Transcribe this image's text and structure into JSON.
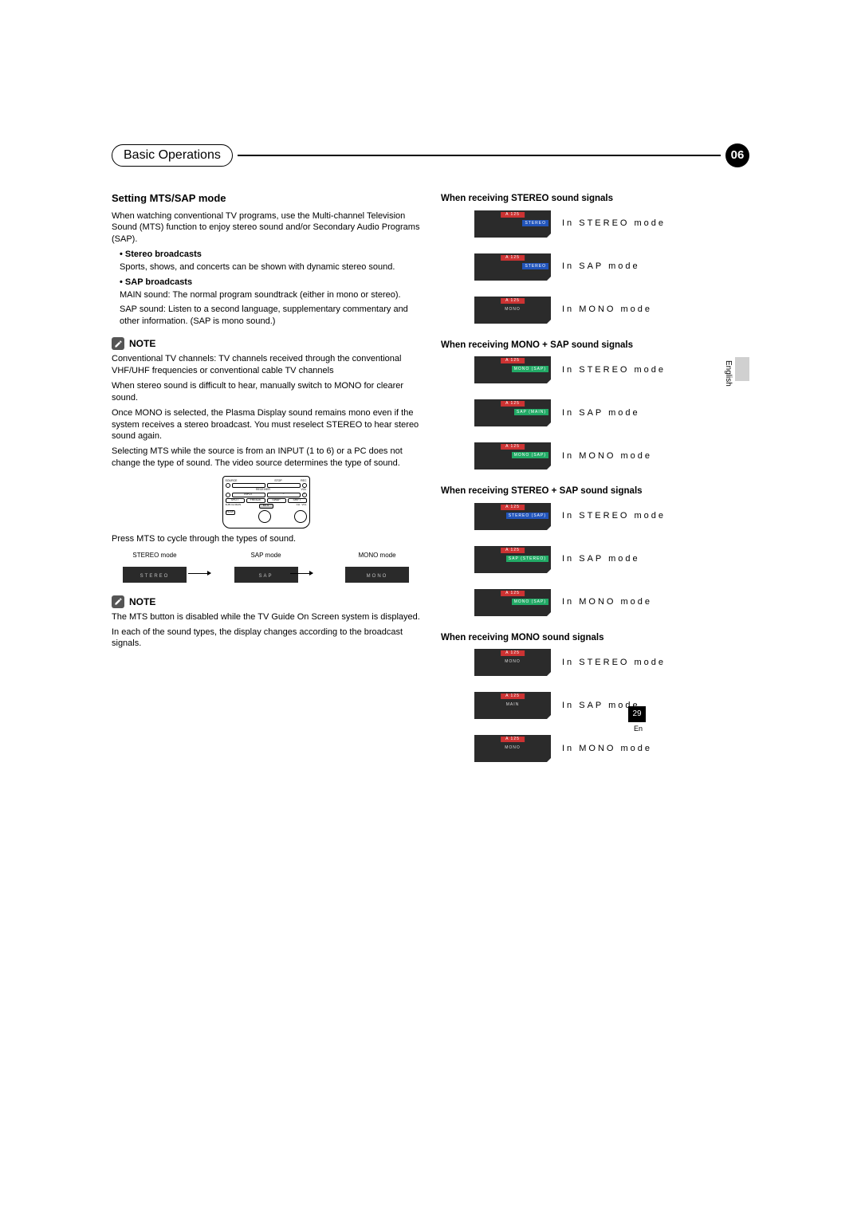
{
  "chapter": {
    "title": "Basic Operations",
    "number": "06"
  },
  "side": {
    "lang": "English",
    "pageNum": "29",
    "pageLang": "En"
  },
  "left": {
    "h1": "Setting MTS/SAP mode",
    "intro": "When watching conventional TV programs, use the Multi-channel Television Sound (MTS) function to enjoy stereo sound and/or Secondary Audio Programs (SAP).",
    "bullet1h": "Stereo broadcasts",
    "bullet1p": "Sports, shows, and concerts can be shown with dynamic stereo sound.",
    "bullet2h": "SAP broadcasts",
    "bullet2p1": "MAIN sound: The normal program soundtrack (either in mono or stereo).",
    "bullet2p2": "SAP sound: Listen to a second language, supplementary commentary and other information. (SAP is mono sound.)",
    "note1h": "NOTE",
    "note1p1": "Conventional TV channels: TV channels received through the conventional VHF/UHF frequencies or conventional cable TV channels",
    "note1p2": "When stereo sound is difficult to hear, manually switch to MONO for clearer sound.",
    "note1p3": "Once MONO is selected, the Plasma Display sound remains mono even if the system receives a stereo broadcast. You must reselect STEREO to hear stereo sound again.",
    "note1p4": "Selecting MTS while the source is from an INPUT (1 to 6) or a PC does not change the type of sound. The video source determines the type of sound.",
    "pressLine": "Press MTS to cycle through the types of sound.",
    "modes": {
      "l1": "STEREO mode",
      "l2": "SAP mode",
      "l3": "MONO mode",
      "b1": "STEREO",
      "b2": "SAP",
      "b3": "MONO"
    },
    "note2h": "NOTE",
    "note2p1": "The MTS button is disabled while the TV Guide On Screen system is displayed.",
    "note2p2": "In each of the sound types, the display changes according to the broadcast signals."
  },
  "remote": {
    "row1": [
      "SOURCE",
      "",
      "STOP",
      "REC"
    ],
    "row2": [
      "",
      "INPUT",
      "RECEIVER",
      "VOL"
    ],
    "row3": [
      "SPLIT",
      "FREEZE",
      "SWAP",
      "SHIFT"
    ],
    "row4": [
      "SUB CH",
      "MAIN",
      "MTS",
      "CH",
      "",
      "VOL"
    ],
    "bottom": "HDMI"
  },
  "right": {
    "sections": [
      {
        "h": "When receiving STEREO sound signals",
        "rows": [
          {
            "badge": "STEREO",
            "badgeColor": "blue",
            "label": "In STEREO mode"
          },
          {
            "badge": "STEREO",
            "badgeColor": "blue",
            "label": "In SAP mode"
          },
          {
            "badge": "MONO",
            "badgeColor": "none",
            "label": "In MONO mode"
          }
        ]
      },
      {
        "h": "When receiving MONO + SAP sound signals",
        "rows": [
          {
            "badge": "MONO (SAP)",
            "badgeColor": "green",
            "label": "In STEREO mode"
          },
          {
            "badge": "SAP (MAIN)",
            "badgeColor": "green",
            "label": "In SAP mode"
          },
          {
            "badge": "MONO (SAP)",
            "badgeColor": "green",
            "label": "In MONO mode"
          }
        ]
      },
      {
        "h": "When receiving STEREO + SAP sound signals",
        "rows": [
          {
            "badge": "STEREO (SAP)",
            "badgeColor": "blue",
            "label": "In STEREO mode"
          },
          {
            "badge": "SAP (STEREO)",
            "badgeColor": "green",
            "label": "In SAP mode"
          },
          {
            "badge": "MONO (SAP)",
            "badgeColor": "green",
            "label": "In MONO mode"
          }
        ]
      },
      {
        "h": "When receiving MONO sound signals",
        "rows": [
          {
            "badge": "MONO",
            "badgeColor": "none",
            "label": "In STEREO mode"
          },
          {
            "badge": "MAIN",
            "badgeColor": "none",
            "label": "In SAP mode"
          },
          {
            "badge": "MONO",
            "badgeColor": "none",
            "label": "In MONO mode"
          }
        ]
      }
    ],
    "osdTop": "A   125"
  }
}
